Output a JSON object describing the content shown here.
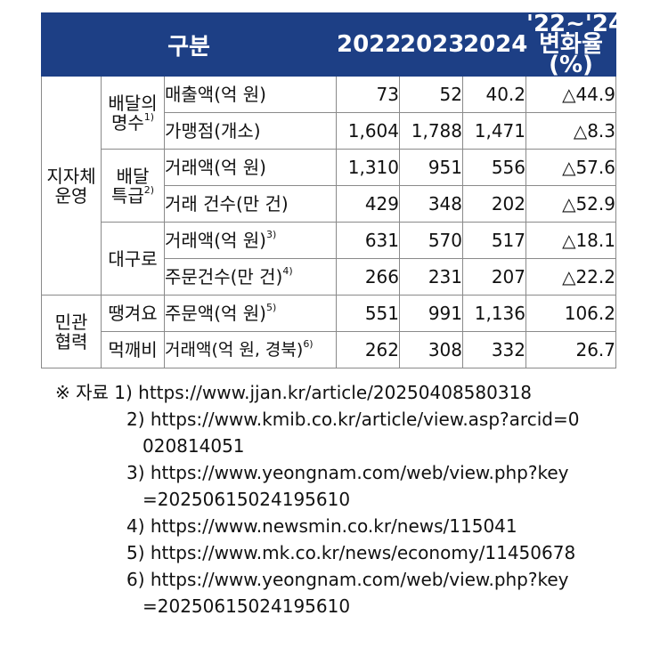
{
  "table": {
    "header": {
      "category": "구분",
      "y2022": "2022",
      "y2023": "2023",
      "y2024": "2024",
      "rate_line1": "'22~'24",
      "rate_line2": "변화율(%)"
    },
    "group1": {
      "label_line1": "지자체",
      "label_line2": "운영"
    },
    "group2": {
      "label_line1": "민관",
      "label_line2": "협력"
    },
    "subs": {
      "baedal_line1": "배달의",
      "baedal_line2": "명수",
      "baedal_note": "1)",
      "teukgeup_line1": "배달",
      "teukgeup_line2": "특급",
      "teukgeup_note": "2)",
      "daeguro": "대구로",
      "ddaenggyeoyo": "땡겨요",
      "meokkaebi": "먹깨비"
    },
    "rows": [
      {
        "item": "매출액(억 원)",
        "note": "",
        "v2022": "73",
        "v2023": "52",
        "v2024": "40.2",
        "rate": "△44.9"
      },
      {
        "item": "가맹점(개소)",
        "note": "",
        "v2022": "1,604",
        "v2023": "1,788",
        "v2024": "1,471",
        "rate": "△8.3"
      },
      {
        "item": "거래액(억 원)",
        "note": "",
        "v2022": "1,310",
        "v2023": "951",
        "v2024": "556",
        "rate": "△57.6"
      },
      {
        "item": "거래 건수(만 건)",
        "note": "",
        "v2022": "429",
        "v2023": "348",
        "v2024": "202",
        "rate": "△52.9"
      },
      {
        "item": "거래액(억 원)",
        "note": "3)",
        "v2022": "631",
        "v2023": "570",
        "v2024": "517",
        "rate": "△18.1"
      },
      {
        "item": "주문건수(만 건)",
        "note": "4)",
        "v2022": "266",
        "v2023": "231",
        "v2024": "207",
        "rate": "△22.2"
      },
      {
        "item": "주문액(억 원)",
        "note": "5)",
        "v2022": "551",
        "v2023": "991",
        "v2024": "1,136",
        "rate": "106.2"
      },
      {
        "item": "거래액(억 원, 경북)",
        "note": "6)",
        "v2022": "262",
        "v2023": "308",
        "v2024": "332",
        "rate": "26.7"
      }
    ]
  },
  "notes": {
    "prefix": "※ 자료",
    "n1": "1) https://www.jjan.kr/article/20250408580318",
    "n2a": "2) https://www.kmib.co.kr/article/view.asp?arcid=0",
    "n2b": "020814051",
    "n3a": "3) https://www.yeongnam.com/web/view.php?key",
    "n3b": "=20250615024195610",
    "n4": "4) https://www.newsmin.co.kr/news/115041",
    "n5": "5) https://www.mk.co.kr/news/economy/11450678",
    "n6a": "6) https://www.yeongnam.com/web/view.php?key",
    "n6b": "=20250615024195610"
  },
  "colors": {
    "header_bg": "#1d3f85",
    "header_text": "#ffffff",
    "border": "#8a8a8a"
  }
}
